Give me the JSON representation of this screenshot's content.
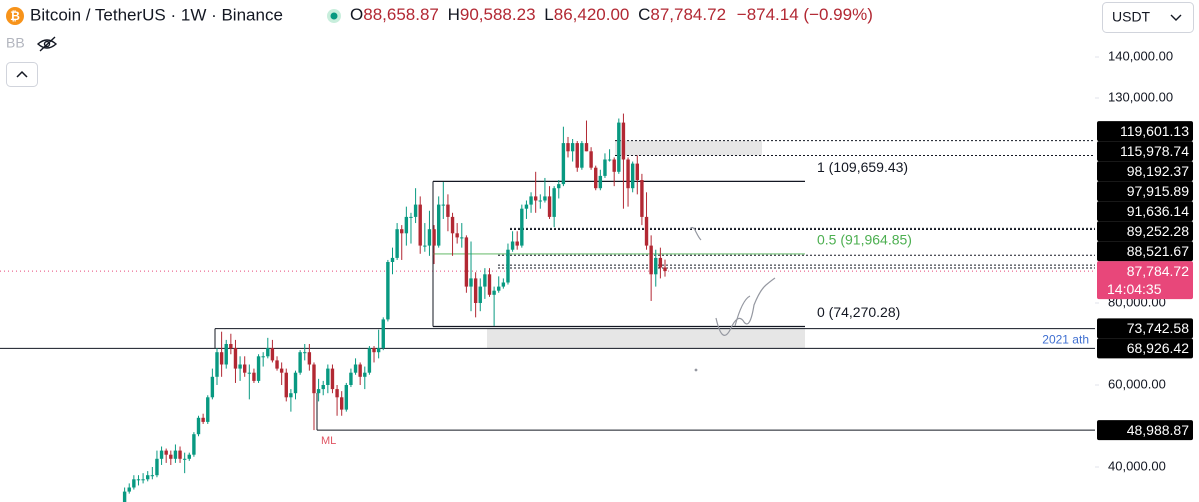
{
  "header": {
    "symbol": "Bitcoin / TetherUS · 1W · Binance",
    "ohlc": [
      {
        "key": "O",
        "value": "88,658.87"
      },
      {
        "key": "H",
        "value": "90,588.23"
      },
      {
        "key": "L",
        "value": "86,420.00"
      },
      {
        "key": "C",
        "value": "87,784.72"
      }
    ],
    "change": "−874.14 (−0.99%)",
    "indicator": "BB",
    "currency": "USDT"
  },
  "chart_data": {
    "type": "candlestick",
    "up_color": "#089981",
    "down_color": "#b22833",
    "ylim": [
      31463,
      153902
    ],
    "yticks": [
      {
        "value": 40000,
        "label": "40,000.00"
      },
      {
        "value": 60000,
        "label": "60,000.00"
      },
      {
        "value": 80000,
        "label": "80,000.00"
      },
      {
        "value": 130000,
        "label": "130,000.00"
      },
      {
        "value": 140000,
        "label": "140,000.00"
      }
    ],
    "candles": [
      [
        28000,
        31000,
        27500,
        30000
      ],
      [
        30000,
        35000,
        29500,
        34000
      ],
      [
        34000,
        36000,
        33500,
        35000
      ],
      [
        35000,
        38000,
        34500,
        37000
      ],
      [
        37000,
        38000,
        35500,
        37000
      ],
      [
        37000,
        38500,
        36000,
        37000
      ],
      [
        37000,
        39000,
        36500,
        38000
      ],
      [
        38000,
        40000,
        37000,
        38000
      ],
      [
        38000,
        44000,
        37500,
        42000
      ],
      [
        42000,
        45000,
        40500,
        44000
      ],
      [
        44000,
        44500,
        41000,
        43000
      ],
      [
        43000,
        44000,
        40500,
        42000
      ],
      [
        42000,
        45500,
        41000,
        44000
      ],
      [
        44000,
        45000,
        41000,
        42000
      ],
      [
        42000,
        43500,
        38500,
        42000
      ],
      [
        42000,
        43500,
        41500,
        43000
      ],
      [
        43000,
        48500,
        42500,
        48000
      ],
      [
        48000,
        52500,
        47500,
        52000
      ],
      [
        52000,
        53000,
        50500,
        51000
      ],
      [
        51000,
        57500,
        50500,
        57000
      ],
      [
        57000,
        64000,
        56500,
        62000
      ],
      [
        62000,
        69000,
        60000,
        68000
      ],
      [
        68000,
        73000,
        62000,
        65000
      ],
      [
        65000,
        71000,
        64000,
        70000
      ],
      [
        70000,
        72500,
        67500,
        69000
      ],
      [
        69000,
        71000,
        60500,
        64000
      ],
      [
        64000,
        67000,
        61000,
        65000
      ],
      [
        65000,
        67000,
        62000,
        63000
      ],
      [
        63000,
        65000,
        56500,
        63000
      ],
      [
        63000,
        64000,
        60500,
        61000
      ],
      [
        61000,
        67500,
        60500,
        67000
      ],
      [
        67000,
        68000,
        64500,
        67000
      ],
      [
        67000,
        71500,
        66500,
        69000
      ],
      [
        69000,
        71000,
        65500,
        66000
      ],
      [
        66000,
        67000,
        63500,
        64000
      ],
      [
        64000,
        65500,
        60000,
        63000
      ],
      [
        63000,
        64000,
        56000,
        57000
      ],
      [
        57000,
        59000,
        53500,
        58000
      ],
      [
        58000,
        63500,
        56500,
        63000
      ],
      [
        63000,
        68500,
        62500,
        68000
      ],
      [
        68000,
        70000,
        66000,
        68000
      ],
      [
        68000,
        70000,
        63500,
        65000
      ],
      [
        65000,
        65500,
        49000,
        58000
      ],
      [
        58000,
        61500,
        56000,
        59000
      ],
      [
        59000,
        61000,
        57500,
        60000
      ],
      [
        60000,
        65000,
        58000,
        64000
      ],
      [
        64000,
        65000,
        58000,
        59000
      ],
      [
        59000,
        60000,
        52500,
        57000
      ],
      [
        57000,
        58500,
        52500,
        54000
      ],
      [
        54000,
        60500,
        53500,
        60000
      ],
      [
        60000,
        64000,
        59500,
        63000
      ],
      [
        63000,
        66500,
        62500,
        65000
      ],
      [
        65000,
        65500,
        60000,
        62000
      ],
      [
        62000,
        64500,
        59000,
        63000
      ],
      [
        63000,
        69500,
        62500,
        69000
      ],
      [
        69000,
        69500,
        65500,
        68000
      ],
      [
        68000,
        73500,
        66500,
        69000
      ],
      [
        69000,
        76500,
        68500,
        76000
      ],
      [
        76000,
        90500,
        75500,
        90000
      ],
      [
        90000,
        93500,
        87000,
        91000
      ],
      [
        91000,
        99500,
        90500,
        98000
      ],
      [
        98000,
        99000,
        90500,
        97000
      ],
      [
        97000,
        103500,
        94000,
        101000
      ],
      [
        101000,
        102000,
        94500,
        101000
      ],
      [
        101000,
        108000,
        99500,
        104000
      ],
      [
        104000,
        106000,
        92000,
        94000
      ],
      [
        94000,
        99500,
        92500,
        94000
      ],
      [
        94000,
        102500,
        91500,
        98000
      ],
      [
        98000,
        99000,
        89500,
        94000
      ],
      [
        94000,
        106000,
        93500,
        104000
      ],
      [
        104000,
        109500,
        100500,
        104000
      ],
      [
        104000,
        106500,
        97500,
        101000
      ],
      [
        101000,
        102000,
        91500,
        97000
      ],
      [
        97000,
        99500,
        94500,
        96000
      ],
      [
        96000,
        99500,
        93500,
        96000
      ],
      [
        96000,
        96500,
        82500,
        84000
      ],
      [
        84000,
        95000,
        78000,
        86000
      ],
      [
        86000,
        87500,
        76500,
        80000
      ],
      [
        80000,
        86000,
        78000,
        84000
      ],
      [
        84000,
        88500,
        81000,
        87000
      ],
      [
        87000,
        88500,
        81500,
        82000
      ],
      [
        82000,
        84000,
        74400,
        83000
      ],
      [
        83000,
        86500,
        82500,
        84000
      ],
      [
        84000,
        86000,
        83500,
        85000
      ],
      [
        85000,
        94500,
        84500,
        93000
      ],
      [
        93000,
        97500,
        92500,
        95000
      ],
      [
        95000,
        97500,
        93000,
        94000
      ],
      [
        94000,
        104000,
        93500,
        103000
      ],
      [
        103000,
        105000,
        100500,
        104000
      ],
      [
        104000,
        107000,
        102000,
        106000
      ],
      [
        106000,
        112000,
        102000,
        105000
      ],
      [
        105000,
        106500,
        103000,
        105000
      ],
      [
        105000,
        110500,
        104500,
        106000
      ],
      [
        106000,
        108500,
        100500,
        101000
      ],
      [
        101000,
        108500,
        98500,
        108000
      ],
      [
        108000,
        110000,
        105500,
        109000
      ],
      [
        109000,
        123000,
        108500,
        119000
      ],
      [
        119000,
        120500,
        115500,
        117000
      ],
      [
        117000,
        120000,
        114500,
        119000
      ],
      [
        119000,
        119500,
        112000,
        113000
      ],
      [
        113000,
        119500,
        112500,
        119000
      ],
      [
        119000,
        124500,
        117000,
        117000
      ],
      [
        117000,
        118000,
        112500,
        113000
      ],
      [
        113000,
        113500,
        107500,
        108000
      ],
      [
        108000,
        112500,
        107500,
        111000
      ],
      [
        111000,
        116500,
        110500,
        115000
      ],
      [
        115000,
        117500,
        114500,
        115000
      ],
      [
        115000,
        115500,
        108500,
        112000
      ],
      [
        112000,
        125000,
        111500,
        124000
      ],
      [
        124000,
        126200,
        103000,
        115000
      ],
      [
        115000,
        115500,
        103500,
        108000
      ],
      [
        108000,
        114500,
        107000,
        114000
      ],
      [
        114000,
        116000,
        106500,
        110000
      ],
      [
        110000,
        111500,
        99000,
        101000
      ],
      [
        101000,
        107000,
        93000,
        94000
      ],
      [
        94000,
        96500,
        80500,
        87000
      ],
      [
        87000,
        93000,
        84000,
        91000
      ],
      [
        91000,
        93500,
        86000,
        88659
      ],
      [
        88658.87,
        90588.23,
        86420,
        87784.72
      ]
    ],
    "price_levels": [
      {
        "value": 119601.13,
        "label": "119,601.13"
      },
      {
        "value": 115978.74,
        "label": "115,978.74"
      },
      {
        "value": 98192.37,
        "label": "98,192.37"
      },
      {
        "value": 97915.89,
        "label": "97,915.89"
      },
      {
        "value": 91636.14,
        "label": "91,636.14"
      },
      {
        "value": 89252.28,
        "label": "89,252.28"
      },
      {
        "value": 88521.67,
        "label": "88,521.67"
      },
      {
        "value": 73742.58,
        "label": "73,742.58"
      },
      {
        "value": 68926.42,
        "label": "68,926.42"
      },
      {
        "value": 48988.87,
        "label": "48,988.87"
      }
    ],
    "current_price": {
      "value": 87784.72,
      "label": "87,784.72",
      "countdown": "14:04:35",
      "color": "#e8477a"
    },
    "fib_levels": [
      {
        "value": 109659.43,
        "label": "1 (109,659.43)",
        "color": "#131722"
      },
      {
        "value": 91964.85,
        "label": "0.5 (91,964.85)",
        "color": "#4caf50"
      },
      {
        "value": 74270.28,
        "label": "0 (74,270.28)",
        "color": "#131722"
      }
    ],
    "annotations": {
      "ath_label": "2021 ath",
      "ml_label": "ML"
    }
  }
}
